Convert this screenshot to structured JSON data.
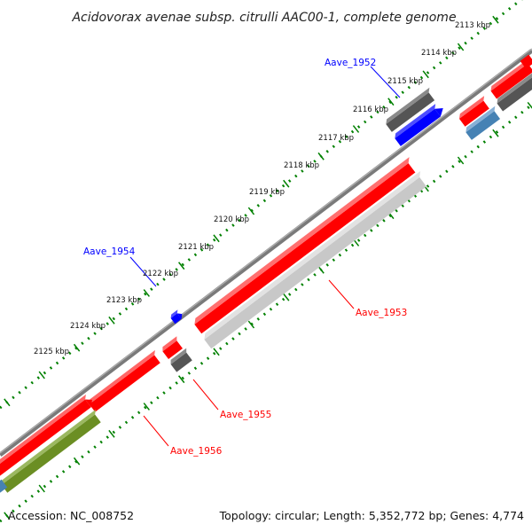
{
  "title": "Acidovorax avenae subsp. citrulli AAC00-1, complete genome",
  "footer": {
    "accession": "Accession: NC_008752",
    "summary": "Topology: circular; Length: 5,352,772 bp; Genes: 4,774"
  },
  "ticks": [
    "2113 kbp",
    "2114 kbp",
    "2115 kbp",
    "2116 kbp",
    "2117 kbp",
    "2118 kbp",
    "2119 kbp",
    "2120 kbp",
    "2121 kbp",
    "2122 kbp",
    "2123 kbp",
    "2124 kbp",
    "2125 kbp"
  ],
  "genes": [
    {
      "name": "Aave_1952",
      "color": "#0000ff"
    },
    {
      "name": "Aave_1953",
      "color": "#ff0000"
    },
    {
      "name": "Aave_1954",
      "color": "#0000ff"
    },
    {
      "name": "Aave_1955",
      "color": "#ff0000"
    },
    {
      "name": "Aave_1956",
      "color": "#ff0000"
    }
  ],
  "colors": {
    "forward": "#ff0000",
    "reverse": "#0000ff",
    "rna": "#555555",
    "cog": "#c0c0c0",
    "olive": "#6b8e23",
    "steelblue": "#4682b4",
    "dots": "#008000"
  }
}
